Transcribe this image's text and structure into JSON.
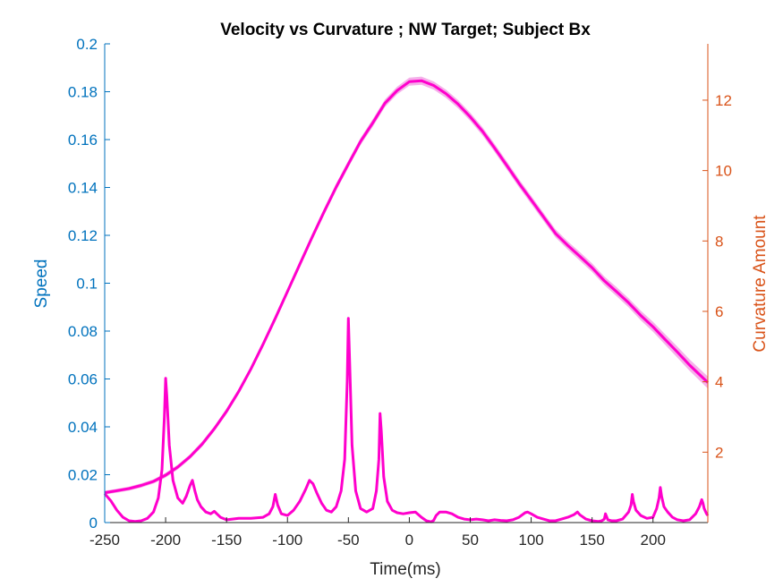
{
  "colors": {
    "left_axis": "#0072BD",
    "right_axis": "#D95319",
    "series": "#FF00CC",
    "band": "#F3A3E6",
    "x_axis": "#262626"
  },
  "chart_data": {
    "type": "line",
    "title": "Velocity vs Curvature ; NW Target; Subject Bx",
    "xlabel": "Time(ms)",
    "ylabel_left": "Speed",
    "ylabel_right": "Curvature Amount",
    "xlim": [
      -250,
      245
    ],
    "ylim_left": [
      0,
      0.2
    ],
    "ylim_right": [
      0,
      13.6
    ],
    "grid": false,
    "x_ticks": [
      -250,
      -200,
      -150,
      -100,
      -50,
      0,
      50,
      100,
      150,
      200
    ],
    "x_tick_labels": [
      "-250",
      "-200",
      "-150",
      "-100",
      "-50",
      "0",
      "50",
      "100",
      "150",
      "200"
    ],
    "y_left_ticks": [
      0,
      0.02,
      0.04,
      0.06,
      0.08,
      0.1,
      0.12,
      0.14,
      0.16,
      0.18,
      0.2
    ],
    "y_left_tick_labels": [
      "0",
      "0.02",
      "0.04",
      "0.06",
      "0.08",
      "0.1",
      "0.12",
      "0.14",
      "0.16",
      "0.18",
      "0.2"
    ],
    "y_right_ticks": [
      2,
      4,
      6,
      8,
      10,
      12
    ],
    "y_right_tick_labels": [
      "2",
      "4",
      "6",
      "8",
      "10",
      "12"
    ],
    "series": [
      {
        "axis": "left",
        "x": [
          -250,
          -240,
          -230,
          -220,
          -210,
          -200,
          -190,
          -180,
          -170,
          -160,
          -150,
          -140,
          -130,
          -120,
          -110,
          -100,
          -90,
          -80,
          -70,
          -60,
          -50,
          -40,
          -30,
          -20,
          -10,
          0,
          10,
          20,
          30,
          40,
          50,
          60,
          70,
          80,
          90,
          100,
          110,
          120,
          130,
          140,
          150,
          160,
          170,
          180,
          190,
          200,
          210,
          220,
          230,
          245
        ],
        "y": [
          0.0125,
          0.0133,
          0.0142,
          0.0155,
          0.0172,
          0.0198,
          0.0232,
          0.0275,
          0.0328,
          0.0392,
          0.0465,
          0.0548,
          0.0642,
          0.0745,
          0.0853,
          0.0965,
          0.1078,
          0.119,
          0.1298,
          0.1402,
          0.1498,
          0.1592,
          0.167,
          0.1752,
          0.1805,
          0.1842,
          0.1846,
          0.1826,
          0.1792,
          0.1748,
          0.1695,
          0.1635,
          0.1565,
          0.1492,
          0.1418,
          0.1348,
          0.1278,
          0.1208,
          0.1158,
          0.1112,
          0.1065,
          0.101,
          0.0965,
          0.0918,
          0.0865,
          0.0818,
          0.0765,
          0.0712,
          0.0658,
          0.0585
        ],
        "band": [
          0.0008,
          0.0008,
          0.0008,
          0.0009,
          0.0009,
          0.001,
          0.001,
          0.001,
          0.0011,
          0.0011,
          0.0012,
          0.0012,
          0.0012,
          0.0013,
          0.0013,
          0.0013,
          0.0014,
          0.0014,
          0.0014,
          0.0015,
          0.0015,
          0.0015,
          0.0016,
          0.0016,
          0.0016,
          0.0017,
          0.0017,
          0.0017,
          0.0017,
          0.0017,
          0.0017,
          0.0017,
          0.0017,
          0.0017,
          0.0017,
          0.0017,
          0.0017,
          0.0017,
          0.0017,
          0.0018,
          0.0018,
          0.0018,
          0.0019,
          0.0019,
          0.002,
          0.0021,
          0.0022,
          0.0023,
          0.0024,
          0.0025
        ]
      },
      {
        "axis": "right",
        "x": [
          -250,
          -245,
          -240,
          -235,
          -230,
          -225,
          -220,
          -215,
          -210,
          -206,
          -203,
          -201,
          -200,
          -199,
          -197,
          -194,
          -190,
          -186,
          -183,
          -180,
          -178,
          -177,
          -176,
          -174,
          -171,
          -167,
          -163,
          -160,
          -158,
          -155,
          -150,
          -140,
          -130,
          -120,
          -115,
          -112,
          -110,
          -108,
          -105,
          -100,
          -95,
          -90,
          -85,
          -82,
          -79,
          -76,
          -72,
          -68,
          -64,
          -60,
          -56,
          -53,
          -51,
          -50,
          -49,
          -47,
          -44,
          -40,
          -35,
          -30,
          -27,
          -25,
          -24,
          -23,
          -21,
          -18,
          -14,
          -10,
          -5,
          0,
          5,
          10,
          14,
          18,
          20,
          22,
          25,
          30,
          35,
          40,
          45,
          50,
          55,
          60,
          65,
          70,
          75,
          80,
          85,
          90,
          95,
          97,
          100,
          105,
          110,
          115,
          120,
          125,
          130,
          135,
          138,
          140,
          145,
          150,
          155,
          158,
          160,
          161,
          163,
          166,
          170,
          175,
          180,
          182,
          183,
          184,
          186,
          190,
          195,
          200,
          203,
          205,
          206,
          207,
          209,
          212,
          216,
          220,
          225,
          230,
          235,
          238,
          240,
          241,
          242,
          244,
          245
        ],
        "y": [
          0.82,
          0.62,
          0.35,
          0.15,
          0.05,
          0.03,
          0.05,
          0.12,
          0.3,
          0.7,
          1.5,
          3.0,
          4.1,
          3.6,
          2.2,
          1.2,
          0.7,
          0.55,
          0.75,
          1.05,
          1.2,
          1.05,
          0.9,
          0.65,
          0.45,
          0.3,
          0.25,
          0.32,
          0.25,
          0.15,
          0.08,
          0.12,
          0.12,
          0.15,
          0.25,
          0.45,
          0.8,
          0.5,
          0.25,
          0.2,
          0.35,
          0.6,
          0.95,
          1.2,
          1.1,
          0.85,
          0.55,
          0.35,
          0.3,
          0.45,
          0.9,
          1.8,
          4.0,
          5.8,
          4.6,
          2.2,
          0.9,
          0.4,
          0.3,
          0.4,
          0.9,
          1.8,
          3.1,
          2.6,
          1.3,
          0.6,
          0.35,
          0.28,
          0.25,
          0.28,
          0.3,
          0.15,
          0.05,
          0.02,
          0.06,
          0.2,
          0.3,
          0.3,
          0.25,
          0.15,
          0.1,
          0.08,
          0.1,
          0.08,
          0.05,
          0.08,
          0.06,
          0.05,
          0.08,
          0.15,
          0.28,
          0.3,
          0.25,
          0.15,
          0.1,
          0.05,
          0.05,
          0.1,
          0.15,
          0.22,
          0.3,
          0.22,
          0.1,
          0.05,
          0.03,
          0.05,
          0.1,
          0.25,
          0.08,
          0.05,
          0.05,
          0.1,
          0.3,
          0.5,
          0.8,
          0.6,
          0.35,
          0.2,
          0.12,
          0.15,
          0.4,
          0.7,
          1.0,
          0.75,
          0.45,
          0.3,
          0.15,
          0.08,
          0.05,
          0.08,
          0.25,
          0.45,
          0.65,
          0.55,
          0.4,
          0.25,
          0.2
        ]
      }
    ]
  }
}
